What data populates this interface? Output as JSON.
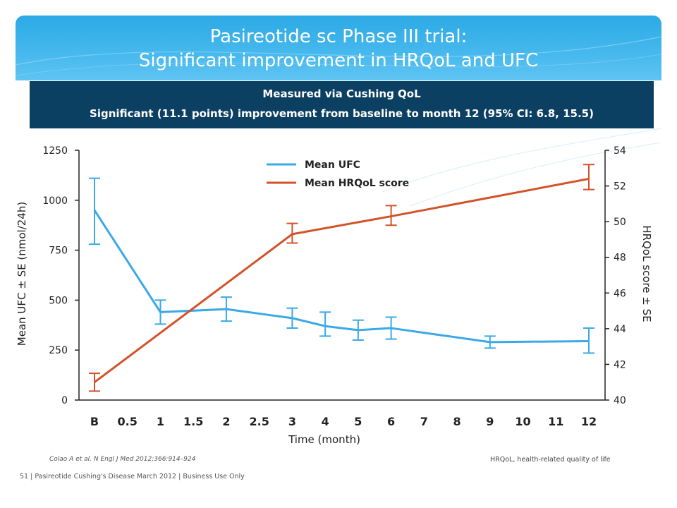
{
  "header": {
    "title_line1": "Pasireotide sc Phase III trial:",
    "title_line2": "Significant improvement in HRQoL and UFC"
  },
  "band": {
    "line1": "Measured via Cushing QoL",
    "line2": "Significant (11.1 points) improvement from baseline to month 12 (95% CI: 6.8, 15.5)"
  },
  "chart_data": {
    "type": "line",
    "x_categories": [
      "B",
      "0.5",
      "1",
      "1.5",
      "2",
      "2.5",
      "3",
      "4",
      "5",
      "6",
      "7",
      "8",
      "9",
      "10",
      "11",
      "12"
    ],
    "xlabel": "Time (month)",
    "ylabel_left": "Mean UFC ± SE (nmol/24h)",
    "ylabel_right": "HRQoL score ± SE",
    "ylim_left": [
      0,
      1250
    ],
    "yticks_left": [
      0,
      250,
      500,
      750,
      1000,
      1250
    ],
    "ylim_right": [
      40,
      54
    ],
    "yticks_right": [
      40,
      42,
      44,
      46,
      48,
      50,
      52,
      54
    ],
    "grid": false,
    "legend_position": "top-center",
    "series": [
      {
        "name": "Mean UFC",
        "axis": "left",
        "color": "#3aa9e6",
        "x": [
          "B",
          "1",
          "2",
          "3",
          "4",
          "5",
          "6",
          "9",
          "12"
        ],
        "values": [
          950,
          440,
          455,
          410,
          370,
          350,
          360,
          290,
          295
        ],
        "err_low": [
          780,
          380,
          395,
          360,
          320,
          300,
          305,
          260,
          235
        ],
        "err_high": [
          1110,
          500,
          515,
          460,
          440,
          400,
          415,
          320,
          360
        ]
      },
      {
        "name": "Mean HRQoL score",
        "axis": "right",
        "color": "#d4522a",
        "x": [
          "B",
          "3",
          "6",
          "12"
        ],
        "values": [
          41.0,
          49.3,
          50.3,
          52.4
        ],
        "err_low": [
          40.5,
          48.8,
          49.8,
          51.8
        ],
        "err_high": [
          41.5,
          49.9,
          50.9,
          53.2
        ]
      }
    ]
  },
  "reference": "Colao A et al. N Engl J Med 2012;366:914–924",
  "abbreviation": "HRQoL, health-related quality of life",
  "footer": "51 | Pasireotide Cushing's Disease March 2012 | Business Use Only"
}
